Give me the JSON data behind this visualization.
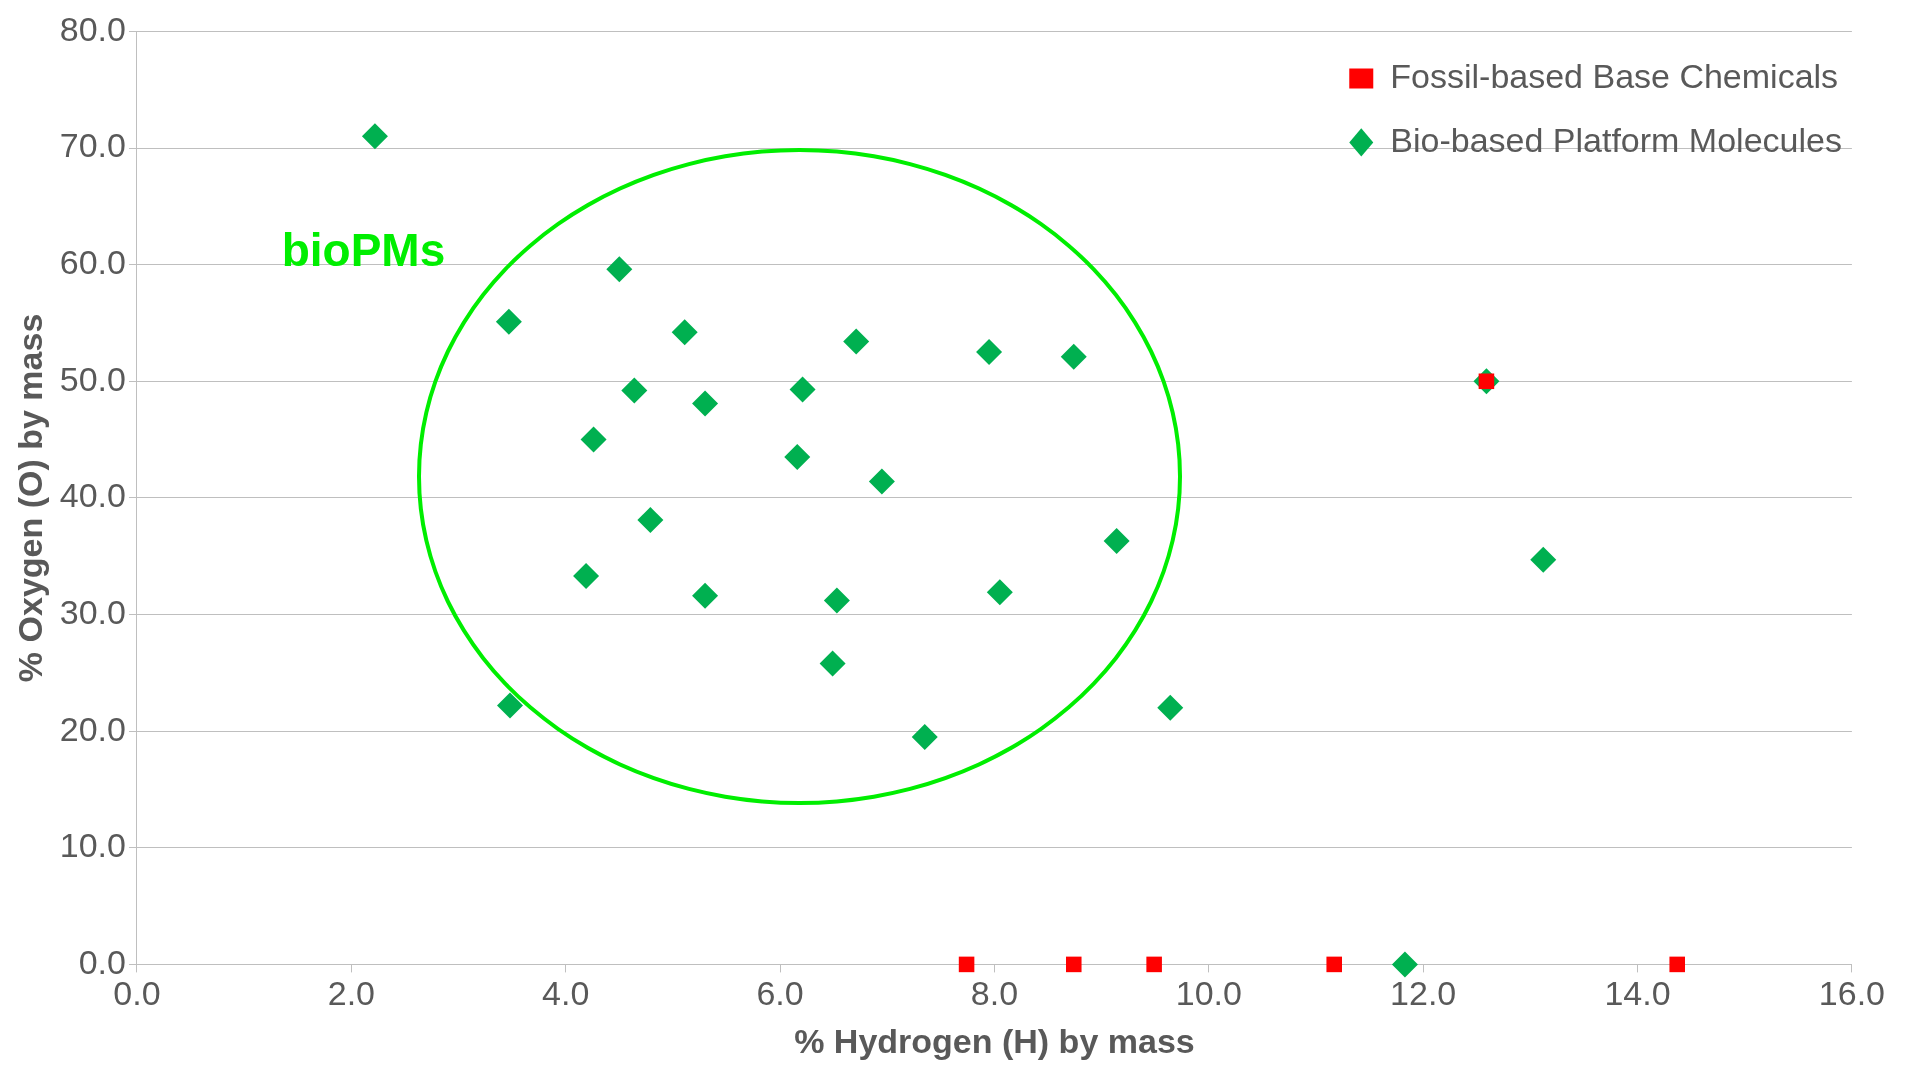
{
  "chart_data": {
    "type": "scatter",
    "xlabel": "% Hydrogen (H) by mass",
    "ylabel": "% Oxygen (O) by mass",
    "xlim": [
      0,
      16
    ],
    "xticks": [
      {
        "value": 0,
        "label": "0.0"
      },
      {
        "value": 2,
        "label": "2.0"
      },
      {
        "value": 4,
        "label": "4.0"
      },
      {
        "value": 6,
        "label": "6.0"
      },
      {
        "value": 8,
        "label": "8.0"
      },
      {
        "value": 10,
        "label": "10.0"
      },
      {
        "value": 12,
        "label": "12.0"
      },
      {
        "value": 14,
        "label": "14.0"
      },
      {
        "value": 16,
        "label": "16.0"
      }
    ],
    "ylim": [
      0,
      80
    ],
    "yticks": [
      {
        "value": 0,
        "label": "0.0"
      },
      {
        "value": 10,
        "label": "10.0"
      },
      {
        "value": 20,
        "label": "20.0"
      },
      {
        "value": 30,
        "label": "30.0"
      },
      {
        "value": 40,
        "label": "40.0"
      },
      {
        "value": 50,
        "label": "50.0"
      },
      {
        "value": 60,
        "label": "60.0"
      },
      {
        "value": 70,
        "label": "70.0"
      },
      {
        "value": 80,
        "label": "80.0"
      }
    ],
    "grid": "y",
    "legend": "top right",
    "series": [
      {
        "name": "Bio-based Platform Molecules",
        "color": "#00b050",
        "marker": "diamond",
        "x": [
          2.22,
          3.47,
          4.5,
          5.11,
          6.71,
          7.95,
          8.74,
          4.64,
          5.3,
          6.21,
          4.26,
          6.16,
          6.95,
          4.79,
          9.14,
          4.19,
          5.3,
          6.53,
          8.05,
          6.49,
          7.35,
          3.48,
          9.64,
          13.12,
          11.83,
          12.59
        ],
        "values": [
          71.0,
          55.1,
          59.6,
          54.2,
          53.4,
          52.5,
          52.1,
          49.2,
          48.1,
          49.3,
          45.0,
          43.5,
          41.4,
          38.1,
          36.3,
          33.3,
          31.6,
          31.2,
          31.9,
          25.8,
          19.5,
          22.2,
          22.0,
          34.7,
          0,
          50.0
        ]
      },
      {
        "name": "Fossil-based Base Chemicals",
        "color": "#ff0000",
        "marker": "square",
        "x": [
          7.74,
          8.74,
          9.49,
          11.17,
          14.37,
          12.59
        ],
        "values": [
          0,
          0,
          0,
          0,
          0,
          50.0
        ]
      }
    ],
    "annotations": [
      "bioPMs"
    ]
  }
}
